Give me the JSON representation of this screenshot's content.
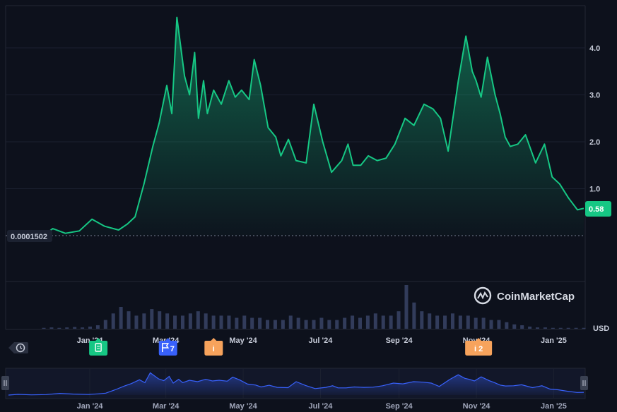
{
  "chart_data": {
    "type": "area",
    "currency": "USD",
    "base_price_label": "0.0001502",
    "current_value_label": "0.58",
    "y_ticks": [
      "1.0",
      "2.0",
      "3.0",
      "4.0"
    ],
    "x_tick_labels": [
      "Jan '24",
      "Mar '24",
      "May '24",
      "Jul '24",
      "Sep '24",
      "Nov '24",
      "Jan '25"
    ],
    "ylim": [
      0,
      4.9
    ],
    "series": [
      {
        "x": [
          "2023-12-08",
          "2023-12-15",
          "2023-12-25",
          "2024-01-05",
          "2024-01-15",
          "2024-01-25",
          "2024-02-05",
          "2024-02-12",
          "2024-02-18",
          "2024-02-25",
          "2024-03-03",
          "2024-03-08",
          "2024-03-14",
          "2024-03-18",
          "2024-03-22",
          "2024-03-28",
          "2024-04-01",
          "2024-04-05",
          "2024-04-08",
          "2024-04-12",
          "2024-04-15",
          "2024-04-20",
          "2024-04-26",
          "2024-05-02",
          "2024-05-07",
          "2024-05-12",
          "2024-05-18",
          "2024-05-22",
          "2024-05-27",
          "2024-06-02",
          "2024-06-08",
          "2024-06-12",
          "2024-06-18",
          "2024-06-24",
          "2024-07-02",
          "2024-07-08",
          "2024-07-15",
          "2024-07-22",
          "2024-07-30",
          "2024-08-04",
          "2024-08-08",
          "2024-08-14",
          "2024-08-20",
          "2024-08-27",
          "2024-09-03",
          "2024-09-10",
          "2024-09-18",
          "2024-09-25",
          "2024-10-03",
          "2024-10-10",
          "2024-10-16",
          "2024-10-22",
          "2024-10-30",
          "2024-11-05",
          "2024-11-10",
          "2024-11-13",
          "2024-11-17",
          "2024-11-22",
          "2024-11-28",
          "2024-12-02",
          "2024-12-06",
          "2024-12-10",
          "2024-12-16",
          "2024-12-22",
          "2024-12-30",
          "2025-01-06",
          "2025-01-12",
          "2025-01-18",
          "2025-01-25",
          "2025-02-01",
          "2025-02-06"
        ],
        "values": [
          0.0,
          0.15,
          0.05,
          0.1,
          0.35,
          0.2,
          0.12,
          0.25,
          0.4,
          1.1,
          1.9,
          2.4,
          3.2,
          2.6,
          4.65,
          3.4,
          3.0,
          3.9,
          2.5,
          3.3,
          2.6,
          3.1,
          2.8,
          3.3,
          2.95,
          3.1,
          2.9,
          3.75,
          3.2,
          2.3,
          2.1,
          1.7,
          2.05,
          1.6,
          1.55,
          2.8,
          2.0,
          1.35,
          1.6,
          1.95,
          1.5,
          1.5,
          1.7,
          1.6,
          1.65,
          1.95,
          2.5,
          2.35,
          2.8,
          2.7,
          2.5,
          1.8,
          3.3,
          4.25,
          3.5,
          3.3,
          2.95,
          3.8,
          3.0,
          2.6,
          2.1,
          1.9,
          1.95,
          2.15,
          1.55,
          1.95,
          1.25,
          1.1,
          0.8,
          0.55,
          0.58
        ]
      }
    ],
    "volume": [
      0.02,
      0.03,
      0.02,
      0.03,
      0.04,
      0.03,
      0.05,
      0.08,
      0.2,
      0.35,
      0.5,
      0.4,
      0.3,
      0.35,
      0.45,
      0.4,
      0.35,
      0.3,
      0.3,
      0.35,
      0.4,
      0.35,
      0.3,
      0.3,
      0.3,
      0.25,
      0.3,
      0.25,
      0.25,
      0.2,
      0.2,
      0.2,
      0.3,
      0.25,
      0.2,
      0.2,
      0.25,
      0.2,
      0.2,
      0.25,
      0.3,
      0.25,
      0.3,
      0.35,
      0.3,
      0.3,
      0.4,
      1.0,
      0.6,
      0.4,
      0.35,
      0.3,
      0.3,
      0.35,
      0.3,
      0.3,
      0.25,
      0.25,
      0.2,
      0.2,
      0.15,
      0.1,
      0.08,
      0.05,
      0.03,
      0.03,
      0.02,
      0.02,
      0.02,
      0.02,
      0.02
    ],
    "watermark": "CoinMarketCap",
    "events": [
      {
        "date": "2024-01-20",
        "type": "document",
        "label": "",
        "color": "#16c784"
      },
      {
        "date": "2024-03-15",
        "type": "flag",
        "label": "7",
        "color": "#3861fb"
      },
      {
        "date": "2024-04-20",
        "type": "info",
        "label": "i",
        "color": "#f7a35c"
      },
      {
        "date": "2024-11-15",
        "type": "info",
        "label": "i 2",
        "color": "#f7a35c"
      }
    ],
    "colors": {
      "line": "#16c784",
      "accent": "#16c784",
      "nav_line": "#3861fb",
      "background": "#0d111c"
    }
  }
}
